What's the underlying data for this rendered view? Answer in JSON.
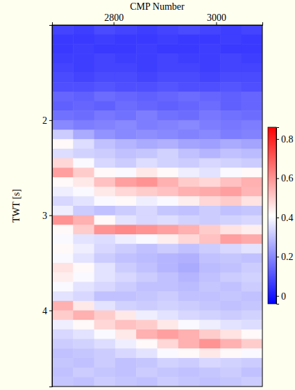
{
  "chart_data": {
    "type": "heatmap",
    "x_label": "CMP Number",
    "y_label": "TWT [s]",
    "xlim": [
      2680,
      3090
    ],
    "ylim": [
      1.0,
      4.8
    ],
    "xticks": [
      2800,
      3000
    ],
    "yticks": [
      2,
      3,
      4
    ],
    "x": [
      2700.5,
      2741.5,
      2782.5,
      2823.5,
      2864.5,
      2905.5,
      2946.5,
      2987.5,
      3028.5,
      3069.5
    ],
    "y": [
      1.05,
      1.15,
      1.25,
      1.35,
      1.45,
      1.55,
      1.65,
      1.75,
      1.85,
      1.95,
      2.05,
      2.15,
      2.25,
      2.35,
      2.45,
      2.55,
      2.65,
      2.75,
      2.85,
      2.95,
      3.05,
      3.15,
      3.25,
      3.35,
      3.45,
      3.55,
      3.65,
      3.75,
      3.85,
      3.95,
      4.05,
      4.15,
      4.25,
      4.35,
      4.45,
      4.55,
      4.65,
      4.75
    ],
    "values": [
      [
        0.08,
        0.07,
        0.09,
        0.08,
        0.07,
        0.08,
        0.09,
        0.08,
        0.07,
        0.08
      ],
      [
        0.06,
        0.06,
        0.07,
        0.06,
        0.06,
        0.07,
        0.06,
        0.06,
        0.07,
        0.06
      ],
      [
        0.06,
        0.07,
        0.06,
        0.06,
        0.07,
        0.06,
        0.06,
        0.07,
        0.06,
        0.06
      ],
      [
        0.07,
        0.07,
        0.08,
        0.07,
        0.07,
        0.08,
        0.07,
        0.07,
        0.08,
        0.07
      ],
      [
        0.08,
        0.07,
        0.08,
        0.08,
        0.07,
        0.08,
        0.08,
        0.07,
        0.08,
        0.08
      ],
      [
        0.09,
        0.08,
        0.09,
        0.09,
        0.08,
        0.09,
        0.09,
        0.08,
        0.09,
        0.09
      ],
      [
        0.1,
        0.1,
        0.11,
        0.1,
        0.1,
        0.11,
        0.1,
        0.1,
        0.11,
        0.1
      ],
      [
        0.14,
        0.13,
        0.15,
        0.14,
        0.13,
        0.14,
        0.15,
        0.14,
        0.13,
        0.14
      ],
      [
        0.13,
        0.14,
        0.13,
        0.15,
        0.14,
        0.13,
        0.14,
        0.15,
        0.13,
        0.14
      ],
      [
        0.16,
        0.15,
        0.17,
        0.16,
        0.18,
        0.16,
        0.15,
        0.17,
        0.16,
        0.15
      ],
      [
        0.2,
        0.18,
        0.19,
        0.2,
        0.18,
        0.19,
        0.2,
        0.18,
        0.17,
        0.18
      ],
      [
        0.32,
        0.26,
        0.22,
        0.2,
        0.21,
        0.2,
        0.19,
        0.2,
        0.18,
        0.19
      ],
      [
        0.42,
        0.35,
        0.3,
        0.28,
        0.26,
        0.27,
        0.25,
        0.24,
        0.26,
        0.25
      ],
      [
        0.35,
        0.33,
        0.32,
        0.3,
        0.31,
        0.33,
        0.3,
        0.28,
        0.3,
        0.29
      ],
      [
        0.48,
        0.4,
        0.34,
        0.32,
        0.35,
        0.33,
        0.32,
        0.34,
        0.33,
        0.32
      ],
      [
        0.58,
        0.5,
        0.42,
        0.4,
        0.45,
        0.42,
        0.38,
        0.36,
        0.4,
        0.42
      ],
      [
        0.42,
        0.45,
        0.52,
        0.58,
        0.6,
        0.55,
        0.5,
        0.48,
        0.52,
        0.55
      ],
      [
        0.38,
        0.4,
        0.45,
        0.48,
        0.5,
        0.52,
        0.55,
        0.56,
        0.58,
        0.54
      ],
      [
        0.34,
        0.36,
        0.4,
        0.42,
        0.38,
        0.4,
        0.44,
        0.48,
        0.5,
        0.46
      ],
      [
        0.38,
        0.32,
        0.3,
        0.32,
        0.34,
        0.31,
        0.3,
        0.32,
        0.3,
        0.31
      ],
      [
        0.6,
        0.55,
        0.42,
        0.36,
        0.34,
        0.35,
        0.33,
        0.32,
        0.33,
        0.34
      ],
      [
        0.42,
        0.5,
        0.6,
        0.62,
        0.6,
        0.58,
        0.55,
        0.5,
        0.46,
        0.44
      ],
      [
        0.4,
        0.36,
        0.35,
        0.38,
        0.4,
        0.44,
        0.48,
        0.52,
        0.58,
        0.56
      ],
      [
        0.42,
        0.38,
        0.34,
        0.32,
        0.3,
        0.32,
        0.3,
        0.32,
        0.34,
        0.36
      ],
      [
        0.4,
        0.36,
        0.32,
        0.3,
        0.29,
        0.28,
        0.27,
        0.3,
        0.31,
        0.3
      ],
      [
        0.46,
        0.42,
        0.36,
        0.32,
        0.3,
        0.28,
        0.26,
        0.29,
        0.3,
        0.32
      ],
      [
        0.44,
        0.4,
        0.36,
        0.34,
        0.32,
        0.3,
        0.28,
        0.3,
        0.32,
        0.33
      ],
      [
        0.4,
        0.36,
        0.34,
        0.32,
        0.3,
        0.3,
        0.29,
        0.31,
        0.3,
        0.32
      ],
      [
        0.36,
        0.34,
        0.3,
        0.3,
        0.31,
        0.32,
        0.3,
        0.3,
        0.31,
        0.3
      ],
      [
        0.55,
        0.45,
        0.36,
        0.33,
        0.32,
        0.33,
        0.32,
        0.31,
        0.3,
        0.31
      ],
      [
        0.5,
        0.55,
        0.5,
        0.45,
        0.38,
        0.36,
        0.34,
        0.33,
        0.32,
        0.33
      ],
      [
        0.38,
        0.42,
        0.48,
        0.52,
        0.5,
        0.45,
        0.4,
        0.38,
        0.36,
        0.35
      ],
      [
        0.34,
        0.36,
        0.4,
        0.45,
        0.55,
        0.58,
        0.55,
        0.5,
        0.46,
        0.42
      ],
      [
        0.32,
        0.33,
        0.35,
        0.38,
        0.42,
        0.48,
        0.55,
        0.6,
        0.55,
        0.5
      ],
      [
        0.3,
        0.31,
        0.32,
        0.34,
        0.36,
        0.4,
        0.42,
        0.45,
        0.42,
        0.4
      ],
      [
        0.31,
        0.3,
        0.32,
        0.3,
        0.31,
        0.33,
        0.32,
        0.34,
        0.33,
        0.32
      ],
      [
        0.3,
        0.32,
        0.31,
        0.3,
        0.32,
        0.31,
        0.3,
        0.31,
        0.32,
        0.3
      ],
      [
        0.31,
        0.3,
        0.32,
        0.31,
        0.3,
        0.32,
        0.31,
        0.3,
        0.31,
        0.32
      ]
    ],
    "colorbar": {
      "range": [
        -0.04,
        0.86
      ],
      "ticks": [
        0,
        0.2,
        0.4,
        0.6,
        0.8
      ]
    }
  }
}
